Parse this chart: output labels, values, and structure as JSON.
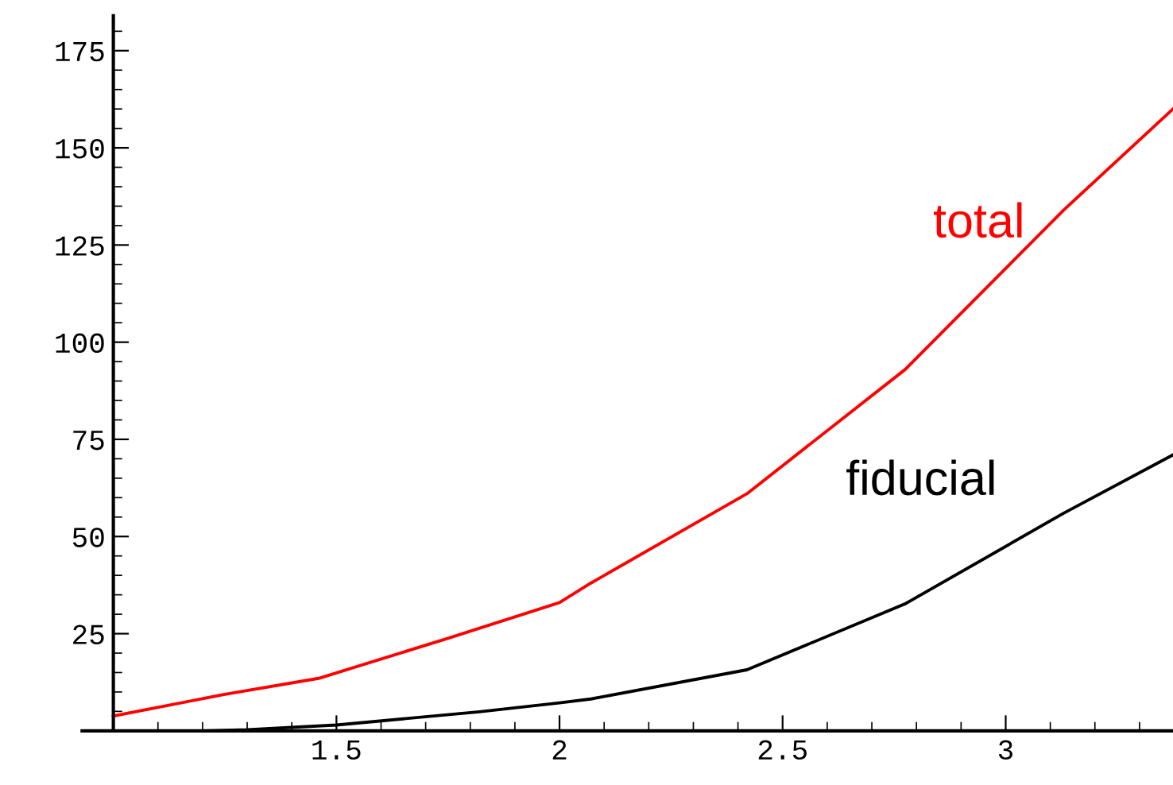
{
  "chart_data": {
    "type": "line",
    "xlim": [
      0.93,
      3.375
    ],
    "ylim": [
      0,
      184
    ],
    "xticks": [
      1.5,
      2,
      2.5,
      3
    ],
    "yticks": [
      25,
      50,
      75,
      100,
      125,
      150,
      175
    ],
    "grid": false,
    "legend": false,
    "series": [
      {
        "name": "total",
        "color": "#ff0000",
        "x": [
          1.0,
          1.25,
          1.46,
          1.75,
          2.0,
          2.07,
          2.42,
          2.775,
          3.13,
          3.375
        ],
        "values": [
          3.8,
          9.4,
          13.5,
          23.8,
          33,
          38,
          61,
          93,
          134,
          160
        ]
      },
      {
        "name": "fiducial",
        "color": "#000000",
        "x": [
          1.0,
          1.2,
          1.3,
          1.5,
          1.82,
          2.0,
          2.07,
          2.42,
          2.775,
          3.13,
          3.375
        ],
        "values": [
          0,
          0,
          0.3,
          1.5,
          4.9,
          7.2,
          8.2,
          15.7,
          32.7,
          56,
          71
        ]
      }
    ]
  }
}
